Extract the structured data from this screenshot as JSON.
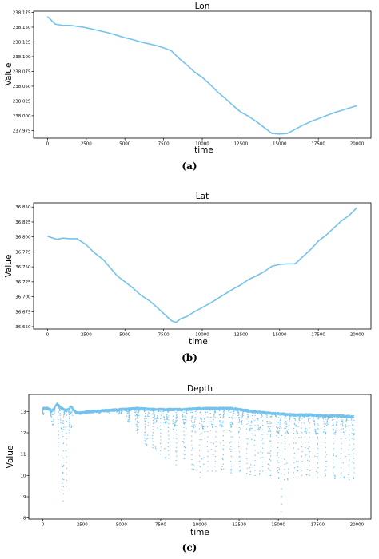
{
  "chart_data": [
    {
      "type": "line",
      "title": "Lon",
      "xlabel": "time",
      "ylabel": "Value",
      "caption": "(a)",
      "color": "#74c2ee",
      "xlim": [
        -900,
        20900
      ],
      "ylim": [
        237.962,
        238.177
      ],
      "xticks": [
        0,
        2500,
        5000,
        7500,
        10000,
        12500,
        15000,
        17500,
        20000
      ],
      "xtick_labels": [
        "0",
        "2500",
        "5000",
        "7500",
        "10000",
        "12500",
        "15000",
        "17500",
        "20000"
      ],
      "yticks": [
        237.975,
        238.0,
        238.025,
        238.05,
        238.075,
        238.1,
        238.125,
        238.15,
        238.175
      ],
      "ytick_labels": [
        "237.975",
        "238.000",
        "238.025",
        "238.050",
        "238.075",
        "238.100",
        "238.125",
        "238.150",
        "238.175"
      ],
      "x": [
        0,
        500,
        1000,
        1500,
        2000,
        2500,
        3000,
        3500,
        4000,
        4500,
        5000,
        5500,
        6000,
        6500,
        7000,
        7500,
        8000,
        8500,
        9000,
        9500,
        10000,
        10500,
        11000,
        11500,
        12000,
        12500,
        13000,
        13500,
        14000,
        14500,
        15000,
        15500,
        16000,
        16500,
        17000,
        17500,
        18000,
        18500,
        19000,
        19500,
        20000
      ],
      "y": [
        238.168,
        238.155,
        238.153,
        238.153,
        238.151,
        238.149,
        238.146,
        238.143,
        238.14,
        238.136,
        238.132,
        238.129,
        238.125,
        238.122,
        238.119,
        238.115,
        238.11,
        238.097,
        238.086,
        238.074,
        238.065,
        238.053,
        238.04,
        238.029,
        238.017,
        238.006,
        237.999,
        237.99,
        237.98,
        237.97,
        237.969,
        237.97,
        237.977,
        237.984,
        237.99,
        237.995,
        238.0,
        238.005,
        238.009,
        238.013,
        238.017
      ]
    },
    {
      "type": "line",
      "title": "Lat",
      "xlabel": "time",
      "ylabel": "Value",
      "caption": "(b)",
      "color": "#74c2ee",
      "xlim": [
        -900,
        20900
      ],
      "ylim": [
        36.646,
        36.857
      ],
      "xticks": [
        0,
        2500,
        5000,
        7500,
        10000,
        12500,
        15000,
        17500,
        20000
      ],
      "xtick_labels": [
        "0",
        "2500",
        "5000",
        "7500",
        "10000",
        "12500",
        "15000",
        "17500",
        "20000"
      ],
      "yticks": [
        36.65,
        36.675,
        36.7,
        36.725,
        36.75,
        36.775,
        36.8,
        36.825,
        36.85
      ],
      "ytick_labels": [
        "36.650",
        "36.675",
        "36.700",
        "36.725",
        "36.750",
        "36.775",
        "36.800",
        "36.825",
        "36.850"
      ],
      "x": [
        0,
        600,
        1000,
        1400,
        1900,
        2500,
        3000,
        3600,
        4000,
        4500,
        5000,
        5500,
        6000,
        6600,
        7000,
        7500,
        8000,
        8300,
        8600,
        9000,
        9500,
        10000,
        10500,
        11000,
        11500,
        12000,
        12500,
        13000,
        13500,
        14000,
        14500,
        15000,
        15500,
        16000,
        16500,
        17000,
        17500,
        18000,
        18500,
        19000,
        19500,
        20000
      ],
      "y": [
        36.801,
        36.796,
        36.798,
        36.797,
        36.797,
        36.787,
        36.774,
        36.762,
        36.75,
        36.735,
        36.725,
        36.715,
        36.703,
        36.693,
        36.684,
        36.672,
        36.66,
        36.657,
        36.663,
        36.667,
        36.675,
        36.682,
        36.689,
        36.697,
        36.705,
        36.713,
        36.72,
        36.729,
        36.735,
        36.742,
        36.751,
        36.754,
        36.755,
        36.755,
        36.767,
        36.779,
        36.793,
        36.803,
        36.815,
        36.827,
        36.836,
        36.849
      ]
    },
    {
      "type": "scatter",
      "title": "Depth",
      "xlabel": "time",
      "ylabel": "Value",
      "caption": "(c)",
      "color": "#74c2ee",
      "xlim": [
        -900,
        20900
      ],
      "ylim": [
        7.95,
        13.8
      ],
      "xticks": [
        0,
        2500,
        5000,
        7500,
        10000,
        12500,
        15000,
        17500,
        20000
      ],
      "xtick_labels": [
        "0",
        "2500",
        "5000",
        "7500",
        "10000",
        "12500",
        "15000",
        "17500",
        "20000"
      ],
      "yticks": [
        8,
        9,
        10,
        11,
        12,
        13
      ],
      "ytick_labels": [
        "8",
        "9",
        "10",
        "11",
        "12",
        "13"
      ],
      "upper_envelope": {
        "x": [
          0,
          300,
          600,
          900,
          1200,
          1500,
          1800,
          2100,
          2500,
          3000,
          4000,
          5000,
          6000,
          7000,
          8000,
          9000,
          10000,
          11000,
          12000,
          13000,
          14000,
          15000,
          16000,
          17000,
          18000,
          19000,
          20000
        ],
        "y": [
          13.2,
          13.2,
          13.1,
          13.4,
          13.2,
          13.1,
          13.3,
          13.0,
          13.0,
          13.05,
          13.1,
          13.15,
          13.2,
          13.15,
          13.15,
          13.15,
          13.2,
          13.2,
          13.2,
          13.1,
          13.0,
          12.95,
          12.9,
          12.9,
          12.85,
          12.85,
          12.8
        ]
      },
      "lower_envelope": {
        "x": [
          0,
          500,
          1000,
          1300,
          1500,
          1700,
          2100,
          3000,
          4000,
          5000,
          5500,
          6000,
          6500,
          7000,
          7500,
          8000,
          8500,
          9000,
          9500,
          10000,
          10500,
          11000,
          11500,
          12000,
          12500,
          13000,
          13500,
          14000,
          14500,
          15000,
          15200,
          15400,
          16000,
          16500,
          17000,
          17500,
          18000,
          18500,
          19000,
          19500,
          19800
        ],
        "y": [
          12.9,
          12.8,
          11.0,
          8.8,
          9.5,
          12.0,
          12.9,
          12.95,
          13.0,
          12.9,
          12.5,
          12.0,
          11.5,
          11.3,
          11.0,
          10.8,
          10.5,
          10.8,
          10.3,
          9.9,
          10.2,
          10.2,
          10.3,
          10.2,
          10.2,
          10.1,
          10.0,
          10.2,
          10.0,
          9.9,
          8.3,
          9.8,
          9.9,
          10.0,
          10.0,
          9.9,
          10.0,
          9.9,
          9.9,
          9.8,
          9.9
        ]
      }
    }
  ]
}
